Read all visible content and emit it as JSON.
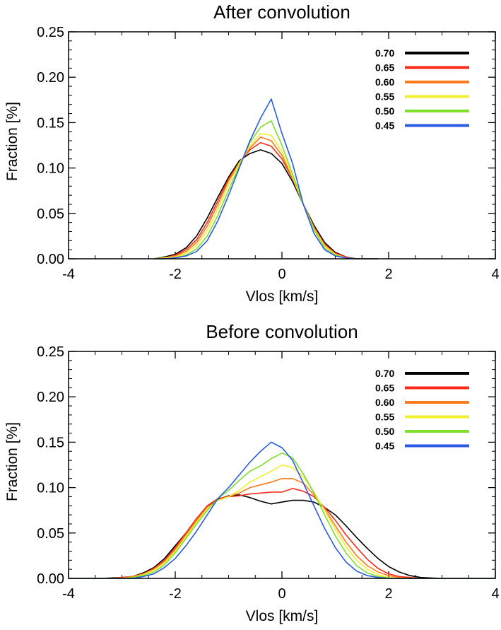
{
  "chart_data": [
    {
      "type": "line",
      "title": "After convolution",
      "xlabel": "Vlos [km/s]",
      "ylabel": "Fraction [%]",
      "xlim": [
        -4,
        4
      ],
      "ylim": [
        0,
        0.25
      ],
      "xticks": [
        -4,
        -2,
        0,
        2,
        4
      ],
      "xtick_labels": [
        "-4",
        "-2",
        "0",
        "2",
        "4"
      ],
      "yticks": [
        0.0,
        0.05,
        0.1,
        0.15,
        0.2,
        0.25
      ],
      "ytick_labels": [
        "0.00",
        "0.05",
        "0.10",
        "0.15",
        "0.20",
        "0.25"
      ],
      "legend_position": "top-right",
      "x": [
        -2.4,
        -2.2,
        -2.0,
        -1.8,
        -1.6,
        -1.4,
        -1.2,
        -1.0,
        -0.8,
        -0.6,
        -0.4,
        -0.2,
        0.0,
        0.2,
        0.4,
        0.6,
        0.8,
        1.0,
        1.2,
        1.4,
        1.6,
        1.8
      ],
      "series": [
        {
          "name": "0.70",
          "color": "#000000",
          "values": [
            0.0,
            0.002,
            0.005,
            0.012,
            0.025,
            0.045,
            0.068,
            0.09,
            0.108,
            0.116,
            0.12,
            0.116,
            0.105,
            0.085,
            0.06,
            0.037,
            0.018,
            0.007,
            0.002,
            0.0,
            0.0,
            0.0
          ]
        },
        {
          "name": "0.65",
          "color": "#ff2a1a",
          "values": [
            0.0,
            0.001,
            0.004,
            0.01,
            0.021,
            0.04,
            0.064,
            0.088,
            0.106,
            0.12,
            0.128,
            0.124,
            0.11,
            0.088,
            0.06,
            0.035,
            0.016,
            0.006,
            0.002,
            0.0,
            0.0,
            0.0
          ]
        },
        {
          "name": "0.60",
          "color": "#ff7a1a",
          "values": [
            0.0,
            0.001,
            0.003,
            0.008,
            0.018,
            0.036,
            0.06,
            0.086,
            0.106,
            0.122,
            0.134,
            0.13,
            0.114,
            0.089,
            0.06,
            0.034,
            0.015,
            0.005,
            0.001,
            0.0,
            0.0,
            0.0
          ]
        },
        {
          "name": "0.55",
          "color": "#f2f030",
          "values": [
            0.0,
            0.001,
            0.002,
            0.006,
            0.015,
            0.031,
            0.055,
            0.082,
            0.105,
            0.124,
            0.138,
            0.136,
            0.118,
            0.09,
            0.06,
            0.033,
            0.014,
            0.005,
            0.001,
            0.0,
            0.0,
            0.0
          ]
        },
        {
          "name": "0.50",
          "color": "#7fe02a",
          "values": [
            0.0,
            0.0,
            0.001,
            0.004,
            0.011,
            0.025,
            0.048,
            0.076,
            0.102,
            0.128,
            0.145,
            0.152,
            0.125,
            0.093,
            0.06,
            0.032,
            0.012,
            0.004,
            0.001,
            0.0,
            0.0,
            0.0
          ]
        },
        {
          "name": "0.45",
          "color": "#2a5ae8",
          "values": [
            0.0,
            0.0,
            0.001,
            0.003,
            0.008,
            0.02,
            0.042,
            0.07,
            0.1,
            0.13,
            0.155,
            0.176,
            0.138,
            0.105,
            0.06,
            0.028,
            0.01,
            0.003,
            0.001,
            0.0,
            0.0,
            0.0
          ]
        }
      ]
    },
    {
      "type": "line",
      "title": "Before convolution",
      "xlabel": "Vlos [km/s]",
      "ylabel": "Fraction [%]",
      "xlim": [
        -4,
        4
      ],
      "ylim": [
        0,
        0.25
      ],
      "xticks": [
        -4,
        -2,
        0,
        2,
        4
      ],
      "xtick_labels": [
        "-4",
        "-2",
        "0",
        "2",
        "4"
      ],
      "yticks": [
        0.0,
        0.05,
        0.1,
        0.15,
        0.2,
        0.25
      ],
      "ytick_labels": [
        "0.00",
        "0.05",
        "0.10",
        "0.15",
        "0.20",
        "0.25"
      ],
      "legend_position": "top-right",
      "x": [
        -4.0,
        -3.6,
        -3.4,
        -3.2,
        -3.0,
        -2.8,
        -2.6,
        -2.4,
        -2.2,
        -2.0,
        -1.8,
        -1.6,
        -1.4,
        -1.2,
        -1.0,
        -0.8,
        -0.6,
        -0.4,
        -0.2,
        0.0,
        0.2,
        0.4,
        0.6,
        0.8,
        1.0,
        1.2,
        1.4,
        1.6,
        1.8,
        2.0,
        2.2,
        2.4,
        2.6,
        2.8,
        3.0,
        3.2,
        4.0
      ],
      "series": [
        {
          "name": "0.70",
          "color": "#000000",
          "values": [
            0.0,
            0.0,
            0.0,
            0.0005,
            0.001,
            0.002,
            0.006,
            0.012,
            0.022,
            0.036,
            0.05,
            0.066,
            0.078,
            0.087,
            0.091,
            0.092,
            0.089,
            0.085,
            0.082,
            0.084,
            0.086,
            0.086,
            0.084,
            0.078,
            0.07,
            0.058,
            0.045,
            0.033,
            0.022,
            0.013,
            0.007,
            0.003,
            0.001,
            0.0005,
            0.0,
            0.0,
            0.0
          ]
        },
        {
          "name": "0.65",
          "color": "#ff2a1a",
          "values": [
            0.0,
            0.0,
            0.0,
            0.0,
            0.001,
            0.002,
            0.005,
            0.011,
            0.02,
            0.034,
            0.05,
            0.066,
            0.08,
            0.088,
            0.09,
            0.091,
            0.093,
            0.094,
            0.095,
            0.095,
            0.099,
            0.096,
            0.09,
            0.078,
            0.064,
            0.048,
            0.034,
            0.021,
            0.011,
            0.005,
            0.002,
            0.001,
            0.0,
            0.0,
            0.0,
            0.0,
            0.0
          ]
        },
        {
          "name": "0.60",
          "color": "#ff7a1a",
          "values": [
            0.0,
            0.0,
            0.0,
            0.0,
            0.0005,
            0.002,
            0.005,
            0.01,
            0.019,
            0.032,
            0.048,
            0.064,
            0.078,
            0.086,
            0.09,
            0.094,
            0.1,
            0.103,
            0.106,
            0.11,
            0.11,
            0.105,
            0.092,
            0.076,
            0.058,
            0.04,
            0.025,
            0.014,
            0.007,
            0.003,
            0.001,
            0.0,
            0.0,
            0.0,
            0.0,
            0.0,
            0.0
          ]
        },
        {
          "name": "0.55",
          "color": "#f2f030",
          "values": [
            0.0,
            0.0,
            0.0,
            0.0,
            0.0,
            0.001,
            0.004,
            0.009,
            0.017,
            0.03,
            0.046,
            0.062,
            0.077,
            0.086,
            0.09,
            0.097,
            0.106,
            0.112,
            0.118,
            0.125,
            0.122,
            0.112,
            0.095,
            0.075,
            0.054,
            0.035,
            0.02,
            0.01,
            0.004,
            0.001,
            0.0,
            0.0,
            0.0,
            0.0,
            0.0,
            0.0,
            0.0
          ]
        },
        {
          "name": "0.50",
          "color": "#7fe02a",
          "values": [
            0.0,
            0.0,
            0.0,
            0.0,
            0.0,
            0.001,
            0.003,
            0.007,
            0.015,
            0.028,
            0.044,
            0.06,
            0.075,
            0.088,
            0.097,
            0.108,
            0.118,
            0.124,
            0.132,
            0.138,
            0.133,
            0.115,
            0.094,
            0.07,
            0.047,
            0.028,
            0.014,
            0.006,
            0.002,
            0.0005,
            0.0,
            0.0,
            0.0,
            0.0,
            0.0,
            0.0,
            0.0
          ]
        },
        {
          "name": "0.45",
          "color": "#2a5ae8",
          "values": [
            0.0,
            0.0,
            0.0,
            0.0,
            0.0,
            0.0,
            0.002,
            0.005,
            0.012,
            0.022,
            0.036,
            0.052,
            0.07,
            0.088,
            0.1,
            0.114,
            0.128,
            0.14,
            0.15,
            0.144,
            0.13,
            0.105,
            0.08,
            0.055,
            0.034,
            0.018,
            0.008,
            0.003,
            0.001,
            0.0,
            0.0,
            0.0,
            0.0,
            0.0,
            0.0,
            0.0,
            0.0
          ]
        }
      ]
    }
  ]
}
